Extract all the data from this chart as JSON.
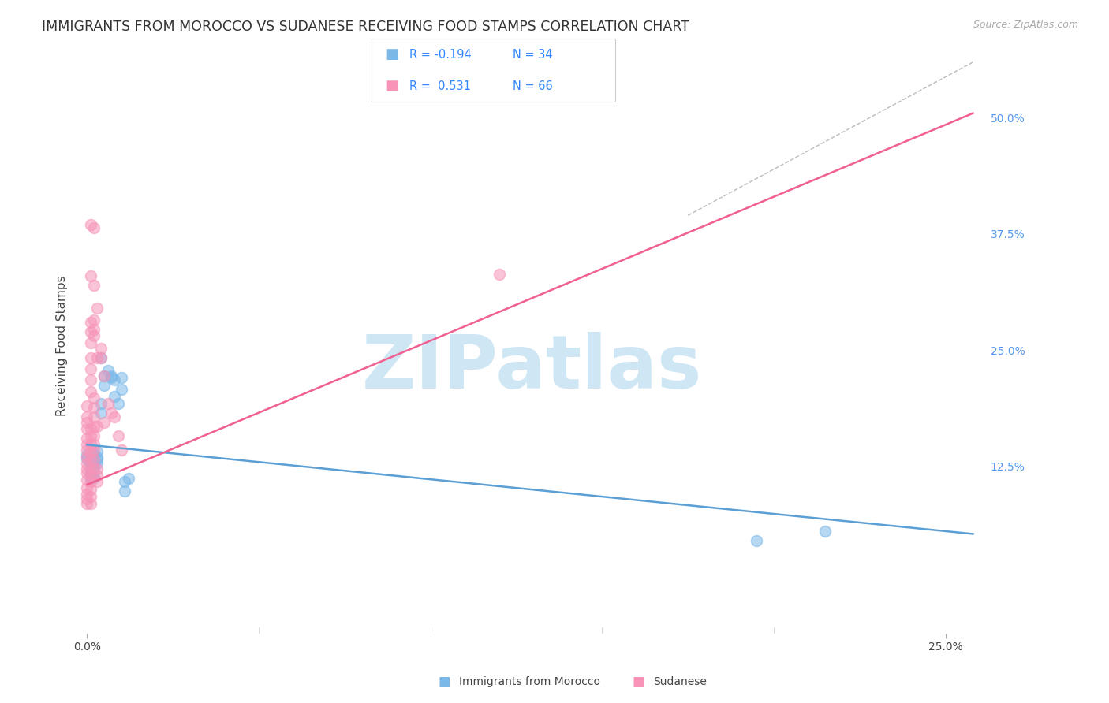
{
  "title": "IMMIGRANTS FROM MOROCCO VS SUDANESE RECEIVING FOOD STAMPS CORRELATION CHART",
  "source": "Source: ZipAtlas.com",
  "ylabel_label": "Receiving Food Stamps",
  "xlim": [
    -0.003,
    0.262
  ],
  "ylim": [
    -0.055,
    0.565
  ],
  "ytick_vals": [
    0.125,
    0.25,
    0.375,
    0.5
  ],
  "ytick_labels": [
    "12.5%",
    "25.0%",
    "37.5%",
    "50.0%"
  ],
  "xtick_vals": [
    0.0,
    0.25
  ],
  "xtick_labels": [
    "0.0%",
    "25.0%"
  ],
  "morocco_color": "#7bb8e8",
  "sudan_color": "#f794b8",
  "morocco_line_color": "#5b9fd4",
  "sudan_line_color": "#f06090",
  "morocco_scatter": [
    [
      0.0,
      0.137
    ],
    [
      0.0,
      0.133
    ],
    [
      0.001,
      0.132
    ],
    [
      0.001,
      0.128
    ],
    [
      0.001,
      0.122
    ],
    [
      0.001,
      0.118
    ],
    [
      0.001,
      0.112
    ],
    [
      0.002,
      0.138
    ],
    [
      0.002,
      0.13
    ],
    [
      0.002,
      0.125
    ],
    [
      0.002,
      0.118
    ],
    [
      0.002,
      0.113
    ],
    [
      0.003,
      0.135
    ],
    [
      0.003,
      0.132
    ],
    [
      0.003,
      0.128
    ],
    [
      0.003,
      0.141
    ],
    [
      0.004,
      0.242
    ],
    [
      0.004,
      0.192
    ],
    [
      0.004,
      0.182
    ],
    [
      0.005,
      0.222
    ],
    [
      0.005,
      0.212
    ],
    [
      0.006,
      0.228
    ],
    [
      0.007,
      0.222
    ],
    [
      0.007,
      0.22
    ],
    [
      0.008,
      0.218
    ],
    [
      0.008,
      0.2
    ],
    [
      0.009,
      0.192
    ],
    [
      0.01,
      0.22
    ],
    [
      0.01,
      0.208
    ],
    [
      0.011,
      0.108
    ],
    [
      0.011,
      0.098
    ],
    [
      0.012,
      0.112
    ],
    [
      0.195,
      0.045
    ],
    [
      0.215,
      0.055
    ]
  ],
  "sudan_scatter": [
    [
      0.0,
      0.19
    ],
    [
      0.0,
      0.178
    ],
    [
      0.0,
      0.172
    ],
    [
      0.0,
      0.165
    ],
    [
      0.0,
      0.155
    ],
    [
      0.0,
      0.148
    ],
    [
      0.0,
      0.142
    ],
    [
      0.0,
      0.135
    ],
    [
      0.0,
      0.128
    ],
    [
      0.0,
      0.122
    ],
    [
      0.0,
      0.118
    ],
    [
      0.0,
      0.11
    ],
    [
      0.0,
      0.102
    ],
    [
      0.0,
      0.095
    ],
    [
      0.0,
      0.09
    ],
    [
      0.0,
      0.085
    ],
    [
      0.001,
      0.385
    ],
    [
      0.001,
      0.33
    ],
    [
      0.001,
      0.28
    ],
    [
      0.001,
      0.27
    ],
    [
      0.001,
      0.258
    ],
    [
      0.001,
      0.242
    ],
    [
      0.001,
      0.23
    ],
    [
      0.001,
      0.218
    ],
    [
      0.001,
      0.205
    ],
    [
      0.001,
      0.165
    ],
    [
      0.001,
      0.158
    ],
    [
      0.001,
      0.148
    ],
    [
      0.001,
      0.14
    ],
    [
      0.001,
      0.132
    ],
    [
      0.001,
      0.122
    ],
    [
      0.001,
      0.115
    ],
    [
      0.001,
      0.108
    ],
    [
      0.001,
      0.1
    ],
    [
      0.001,
      0.092
    ],
    [
      0.001,
      0.085
    ],
    [
      0.002,
      0.382
    ],
    [
      0.002,
      0.32
    ],
    [
      0.002,
      0.282
    ],
    [
      0.002,
      0.272
    ],
    [
      0.002,
      0.265
    ],
    [
      0.002,
      0.198
    ],
    [
      0.002,
      0.188
    ],
    [
      0.002,
      0.178
    ],
    [
      0.002,
      0.168
    ],
    [
      0.002,
      0.158
    ],
    [
      0.002,
      0.148
    ],
    [
      0.002,
      0.142
    ],
    [
      0.002,
      0.132
    ],
    [
      0.002,
      0.122
    ],
    [
      0.003,
      0.295
    ],
    [
      0.003,
      0.242
    ],
    [
      0.003,
      0.168
    ],
    [
      0.003,
      0.122
    ],
    [
      0.003,
      0.115
    ],
    [
      0.003,
      0.108
    ],
    [
      0.004,
      0.252
    ],
    [
      0.004,
      0.242
    ],
    [
      0.005,
      0.222
    ],
    [
      0.005,
      0.172
    ],
    [
      0.006,
      0.192
    ],
    [
      0.007,
      0.182
    ],
    [
      0.008,
      0.178
    ],
    [
      0.009,
      0.158
    ],
    [
      0.01,
      0.142
    ],
    [
      0.12,
      0.332
    ]
  ],
  "morocco_trend_x": [
    0.0,
    0.258
  ],
  "morocco_trend_y": [
    0.148,
    0.052
  ],
  "sudan_trend_x": [
    0.0,
    0.258
  ],
  "sudan_trend_y": [
    0.105,
    0.505
  ],
  "diag_line_x": [
    0.175,
    0.258
  ],
  "diag_line_y": [
    0.395,
    0.56
  ],
  "background_color": "#ffffff",
  "watermark_text": "ZIPatlas",
  "watermark_color": "#cfe6f5",
  "grid_color": "#e8e8e8",
  "title_fontsize": 12.5,
  "axis_label_fontsize": 11,
  "tick_fontsize": 10,
  "source_fontsize": 9,
  "legend_R1": "R = -0.194",
  "legend_N1": "N = 34",
  "legend_R2": "R =  0.531",
  "legend_N2": "N = 66",
  "legend_label1": "Immigrants from Morocco",
  "legend_label2": "Sudanese"
}
